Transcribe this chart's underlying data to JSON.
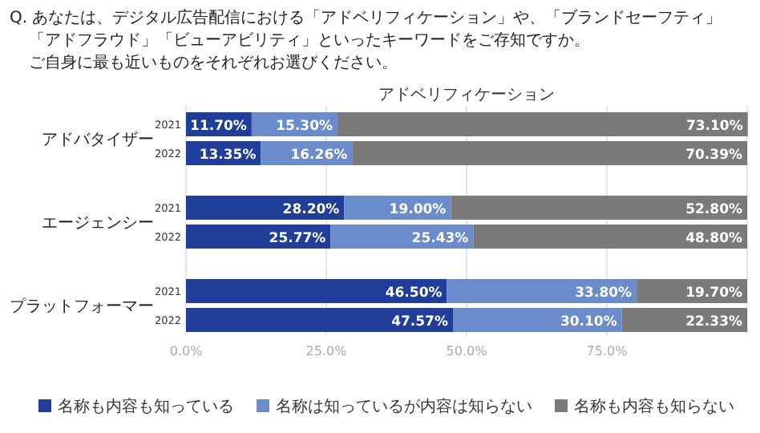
{
  "chart_data": {
    "type": "bar",
    "orientation": "horizontal",
    "stacked": true,
    "title": "Q. あなたは、デジタル広告配信における「アドベリフィケーション」や、「ブランドセーフティ」「アドフラウド」「ビューアビリティ」といったキーワードをご存知ですか。ご自身に最も近いものをそれぞれお選びください。",
    "subtitle": "アドベリフィケーション",
    "categories": [
      "2021",
      "2022",
      "2021",
      "2022",
      "2021",
      "2022"
    ],
    "annotations": [
      "アドバタイザー",
      "エージェンシー",
      "プラットフォーマー"
    ],
    "series": [
      {
        "name": "名称も内容も知っている",
        "color": "#1f3d99",
        "values": [
          11.7,
          13.35,
          28.2,
          25.77,
          46.5,
          47.57
        ],
        "value_labels": [
          "11.70%",
          "13.35%",
          "28.20%",
          "25.77%",
          "46.50%",
          "47.57%"
        ]
      },
      {
        "name": "名称は知っているが内容は知らない",
        "color": "#6a8cca",
        "values": [
          15.3,
          16.26,
          19.0,
          25.43,
          33.8,
          30.1
        ],
        "value_labels": [
          "15.30%",
          "16.26%",
          "19.00%",
          "25.43%",
          "33.80%",
          "30.10%"
        ]
      },
      {
        "name": "名称も内容も知らない",
        "color": "#7a7a7a",
        "values": [
          73.1,
          70.39,
          52.8,
          48.8,
          19.7,
          22.33
        ],
        "value_labels": [
          "73.10%",
          "70.39%",
          "52.80%",
          "48.80%",
          "19.70%",
          "22.33%"
        ]
      }
    ],
    "xlim": [
      0,
      100
    ],
    "xticks": [
      {
        "value": 0,
        "label": "0.0%"
      },
      {
        "value": 25,
        "label": "25.0%"
      },
      {
        "value": 50,
        "label": "50.0%"
      },
      {
        "value": 75,
        "label": "75.0%"
      },
      {
        "value": 100,
        "label": null
      }
    ],
    "grid": "x",
    "legend": "bottom"
  }
}
